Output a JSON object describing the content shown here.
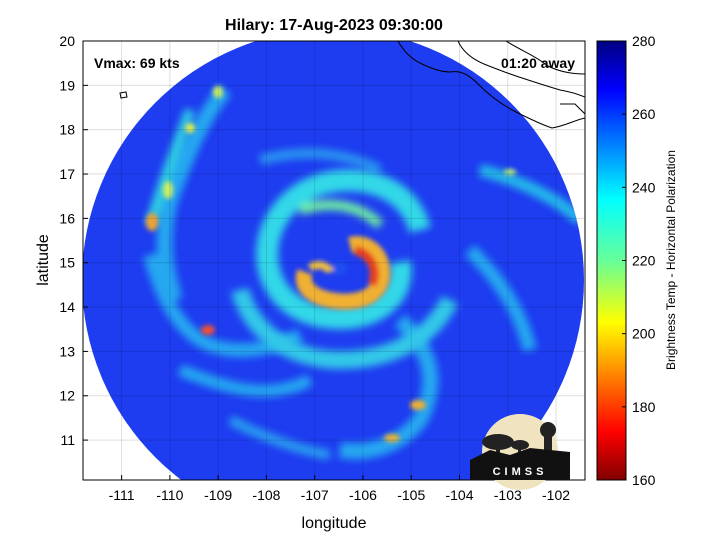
{
  "title": "Hilary: 17-Aug-2023 09:30:00",
  "vmax_label": "Vmax: 69 kts",
  "time_away_label": "01:20 away",
  "xlabel": "longitude",
  "ylabel": "latitude",
  "colorbar": {
    "label": "Brightness Temp - Horizontal Polarization",
    "range": [
      160,
      280
    ],
    "ticks": [
      "160",
      "180",
      "200",
      "220",
      "240",
      "260",
      "280"
    ],
    "colormap": "jet"
  },
  "logo": {
    "text": "CIMSS"
  },
  "map": {
    "lon_range": [
      -111.8,
      -101.4
    ],
    "lat_range": [
      10.1,
      20
    ],
    "x_ticks": [
      "-111",
      "-110",
      "-109",
      "-108",
      "-107",
      "-106",
      "-105",
      "-104",
      "-103",
      "-102"
    ],
    "y_ticks": [
      "11",
      "12",
      "13",
      "14",
      "15",
      "16",
      "17",
      "18",
      "19",
      "20"
    ],
    "grid": true,
    "storm_center": {
      "lon": -106.2,
      "lat": 14.9
    },
    "swath_center": {
      "lon": -106.7,
      "lat": 15.2
    },
    "colors": {
      "background_swath": "#1e3cf0",
      "coastline": "#000000",
      "land_outside": "#ffffff"
    }
  }
}
